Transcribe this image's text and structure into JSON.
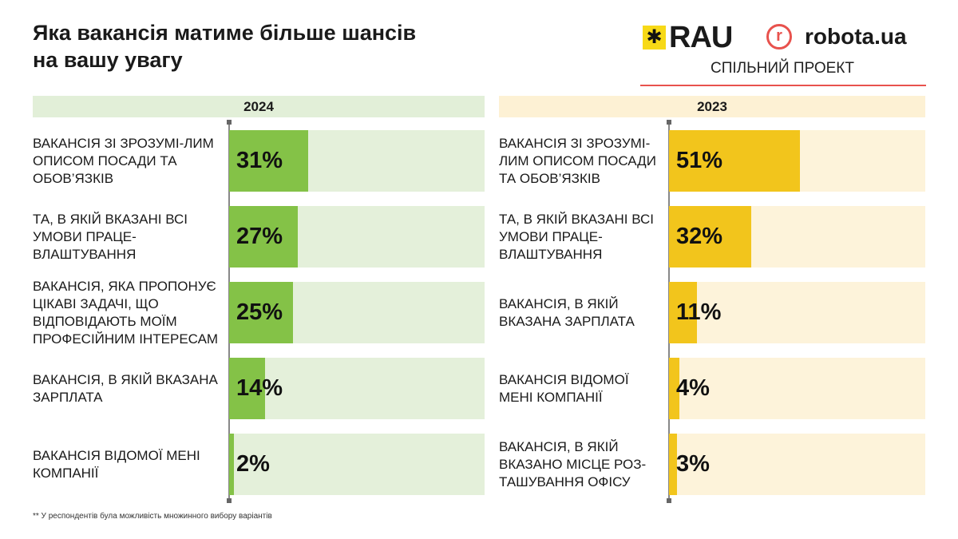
{
  "title": "Яка вакансія матиме більше шансів на вашу увагу",
  "logos": {
    "rau": "RAU",
    "robota": "robota.ua",
    "joint": "СПІЛЬНИЙ ПРОЕКТ"
  },
  "colors": {
    "green_bar": "#84c247",
    "green_track": "#e4f0da",
    "yellow_bar": "#f2c51c",
    "yellow_track": "#fdf3da",
    "accent_red": "#e8524d"
  },
  "chart_data": [
    {
      "type": "bar",
      "orientation": "horizontal",
      "title": "2024",
      "xlim": [
        0,
        100
      ],
      "unit": "%",
      "categories": [
        "Вакансія зі зрозумілим описом посади та обов’язків",
        "Та, в якій вказані всі умови працевлаштування",
        "Вакансія, яка пропонує цікаві задачі, що відповідають моїм професійним інтересам",
        "Вакансія, в якій вказана зарплата",
        "Вакансія відомої мені компанії"
      ],
      "labels": [
        "ВАКАНСІЯ ЗІ ЗРОЗУМІ-ЛИМ ОПИСОМ ПОСАДИ ТА ОБОВ’ЯЗКІВ",
        "ТА, В ЯКІЙ ВКАЗАНІ ВСІ УМОВИ ПРАЦЕ-ВЛАШТУВАННЯ",
        "ВАКАНСІЯ, ЯКА ПРОПОНУЄ ЦІКАВІ ЗАДАЧІ, ЩО ВІДПОВІДАЮТЬ МОЇМ ПРОФЕСІЙНИМ ІНТЕРЕСАМ",
        "ВАКАНСІЯ, В ЯКІЙ ВКАЗАНА ЗАРПЛАТА",
        "ВАКАНСІЯ ВІДОМОЇ МЕНІ КОМПАНІЇ"
      ],
      "values": [
        31,
        27,
        25,
        14,
        2
      ],
      "data_labels": [
        "31%",
        "27%",
        "25%",
        "14%",
        "2%"
      ]
    },
    {
      "type": "bar",
      "orientation": "horizontal",
      "title": "2023",
      "xlim": [
        0,
        100
      ],
      "unit": "%",
      "categories": [
        "Вакансія зі зрозумілим описом посади та обов’язків",
        "Та, в якій вказані всі умови працевлаштування",
        "Вакансія, в якій вказана зарплата",
        "Вакансія відомої мені компанії",
        "Вакансія, в якій вказано місце розташування офісу"
      ],
      "labels": [
        "ВАКАНСІЯ ЗІ ЗРОЗУМІ-ЛИМ ОПИСОМ ПОСАДИ ТА ОБОВ’ЯЗКІВ",
        "ТА, В ЯКІЙ ВКАЗАНІ ВСІ УМОВИ ПРАЦЕ-ВЛАШТУВАННЯ",
        "ВАКАНСІЯ, В ЯКІЙ ВКАЗАНА ЗАРПЛАТА",
        "ВАКАНСІЯ ВІДОМОЇ МЕНІ КОМПАНІЇ",
        "ВАКАНСІЯ, В ЯКІЙ ВКАЗАНО МІСЦЕ РОЗ-ТАШУВАННЯ ОФІСУ"
      ],
      "values": [
        51,
        32,
        11,
        4,
        3
      ],
      "data_labels": [
        "51%",
        "32%",
        "11%",
        "4%",
        "3%"
      ]
    }
  ],
  "footnote": "** У респондентів була можливість множинного вибору варіантів"
}
